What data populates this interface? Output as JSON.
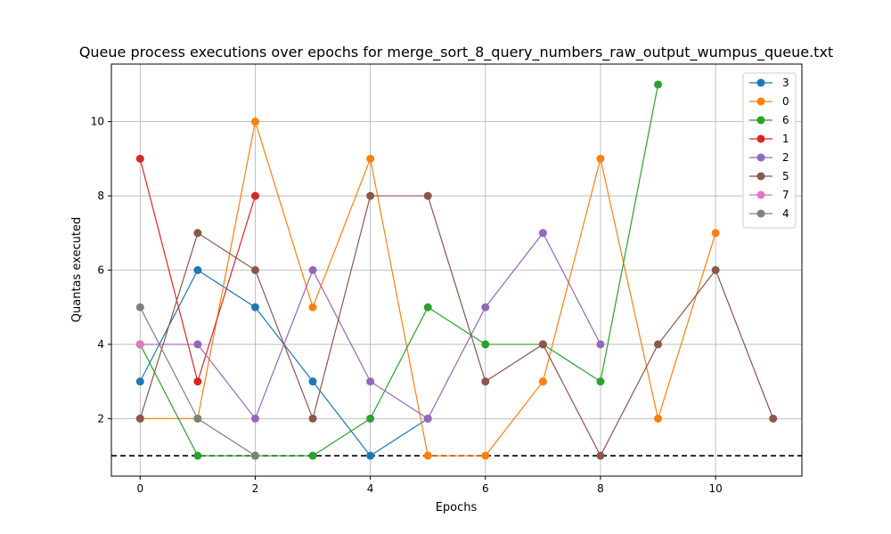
{
  "chart_data": {
    "type": "line",
    "title": "Queue process executions over epochs for merge_sort_8_query_numbers_raw_output_wumpus_queue.txt",
    "xlabel": "Epochs",
    "ylabel": "Quantas executed",
    "xlim": [
      -0.5,
      11.5
    ],
    "ylim": [
      0.45,
      11.55
    ],
    "xticks": [
      0,
      2,
      4,
      6,
      8,
      10
    ],
    "yticks": [
      2,
      4,
      6,
      8,
      10
    ],
    "grid": true,
    "legend_position": "top-right",
    "reference_line": {
      "y": 1,
      "style": "dashed",
      "color": "#000000"
    },
    "series": [
      {
        "name": "3",
        "color": "#1f77b4",
        "x": [
          0,
          1,
          2,
          3,
          4,
          5
        ],
        "y": [
          3,
          6,
          5,
          3,
          1,
          2
        ]
      },
      {
        "name": "0",
        "color": "#ff7f0e",
        "x": [
          0,
          1,
          2,
          3,
          4,
          5,
          6,
          7,
          8,
          9,
          10
        ],
        "y": [
          2,
          2,
          10,
          5,
          9,
          1,
          1,
          3,
          9,
          2,
          7
        ]
      },
      {
        "name": "6",
        "color": "#2ca02c",
        "x": [
          0,
          1,
          2,
          3,
          4,
          5,
          6,
          7,
          8,
          9
        ],
        "y": [
          4,
          1,
          1,
          1,
          2,
          5,
          4,
          4,
          3,
          11
        ]
      },
      {
        "name": "1",
        "color": "#d62728",
        "x": [
          0,
          1,
          2
        ],
        "y": [
          9,
          3,
          8
        ]
      },
      {
        "name": "2",
        "color": "#9467bd",
        "x": [
          0,
          1,
          2,
          3,
          4,
          5,
          6,
          7,
          8
        ],
        "y": [
          4,
          4,
          2,
          6,
          3,
          2,
          5,
          7,
          4
        ]
      },
      {
        "name": "5",
        "color": "#8c564b",
        "x": [
          0,
          1,
          2,
          3,
          4,
          5,
          6,
          7,
          8,
          9,
          10,
          11
        ],
        "y": [
          2,
          7,
          6,
          2,
          8,
          8,
          3,
          4,
          1,
          4,
          6,
          2
        ]
      },
      {
        "name": "7",
        "color": "#e377c2",
        "x": [
          0
        ],
        "y": [
          4
        ]
      },
      {
        "name": "4",
        "color": "#7f7f7f",
        "x": [
          0,
          1,
          2
        ],
        "y": [
          5,
          2,
          1
        ]
      }
    ]
  }
}
